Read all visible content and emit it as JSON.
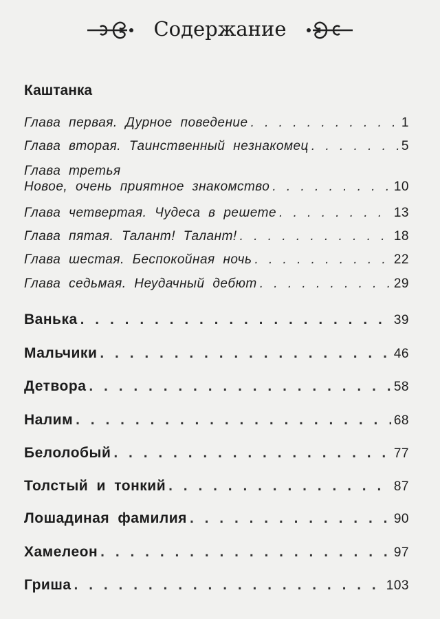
{
  "title": "Содержание",
  "section": "Каштанка",
  "chapters": [
    {
      "title": "Глава первая. Дурное поведение",
      "page": "1"
    },
    {
      "title": "Глава вторая. Таинственный незнакомец",
      "page": "5"
    },
    {
      "title_line1": "Глава третья",
      "title": "Новое, очень приятное знакомство",
      "page": "10"
    },
    {
      "title": "Глава четвертая. Чудеса в решете",
      "page": "13"
    },
    {
      "title": "Глава пятая. Талант! Талант!",
      "page": "18"
    },
    {
      "title": "Глава шестая. Беспокойная ночь",
      "page": "22"
    },
    {
      "title": "Глава седьмая. Неудачный дебют",
      "page": "29"
    }
  ],
  "stories": [
    {
      "title": "Ванька",
      "page": "39"
    },
    {
      "title": "Мальчики",
      "page": "46"
    },
    {
      "title": "Детвора",
      "page": "58"
    },
    {
      "title": "Налим",
      "page": "68"
    },
    {
      "title": "Белолобый",
      "page": "77"
    },
    {
      "title": "Толстый и тонкий",
      "page": "87"
    },
    {
      "title": "Лошадиная фамилия",
      "page": "90"
    },
    {
      "title": "Хамелеон",
      "page": "97"
    },
    {
      "title": "Гриша",
      "page": "103"
    }
  ]
}
